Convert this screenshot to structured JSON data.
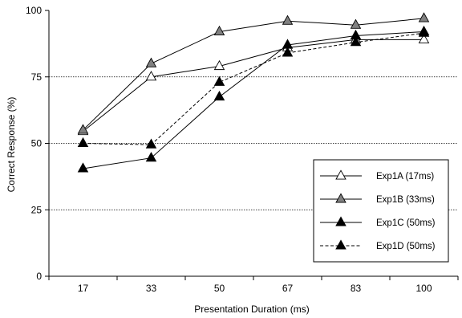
{
  "chart_data": {
    "type": "line",
    "title": "",
    "xlabel": "Presentation Duration (ms)",
    "ylabel": "Correct Response (%)",
    "categories": [
      "17",
      "33",
      "50",
      "67",
      "83",
      "100"
    ],
    "ylim": [
      0,
      100
    ],
    "yticks": [
      0,
      25,
      50,
      75,
      100
    ],
    "grid": "horizontal dotted at 75, 50, 25",
    "legend_position": "bottom-right",
    "series": [
      {
        "name": "Exp1A (17ms)",
        "values": [
          54.5,
          75,
          79,
          86,
          89,
          89
        ],
        "marker": "triangle-open",
        "line": "solid",
        "color": "#000000",
        "fill": "#ffffff"
      },
      {
        "name": "Exp1B (33ms)",
        "values": [
          55,
          80,
          92,
          96,
          94.5,
          97
        ],
        "marker": "triangle-gray",
        "line": "solid",
        "color": "#000000",
        "fill": "#808080"
      },
      {
        "name": "Exp1C (50ms)",
        "values": [
          40.5,
          44.5,
          67.5,
          87,
          90.5,
          92
        ],
        "marker": "triangle-black",
        "line": "solid",
        "color": "#000000",
        "fill": "#000000",
        "mark_from_index": 1
      },
      {
        "name": "Exp1D (50ms)",
        "values": [
          50,
          49.5,
          73,
          84,
          88,
          91.5
        ],
        "marker": "triangle-black",
        "line": "dashed",
        "color": "#000000",
        "fill": "#000000"
      }
    ]
  }
}
